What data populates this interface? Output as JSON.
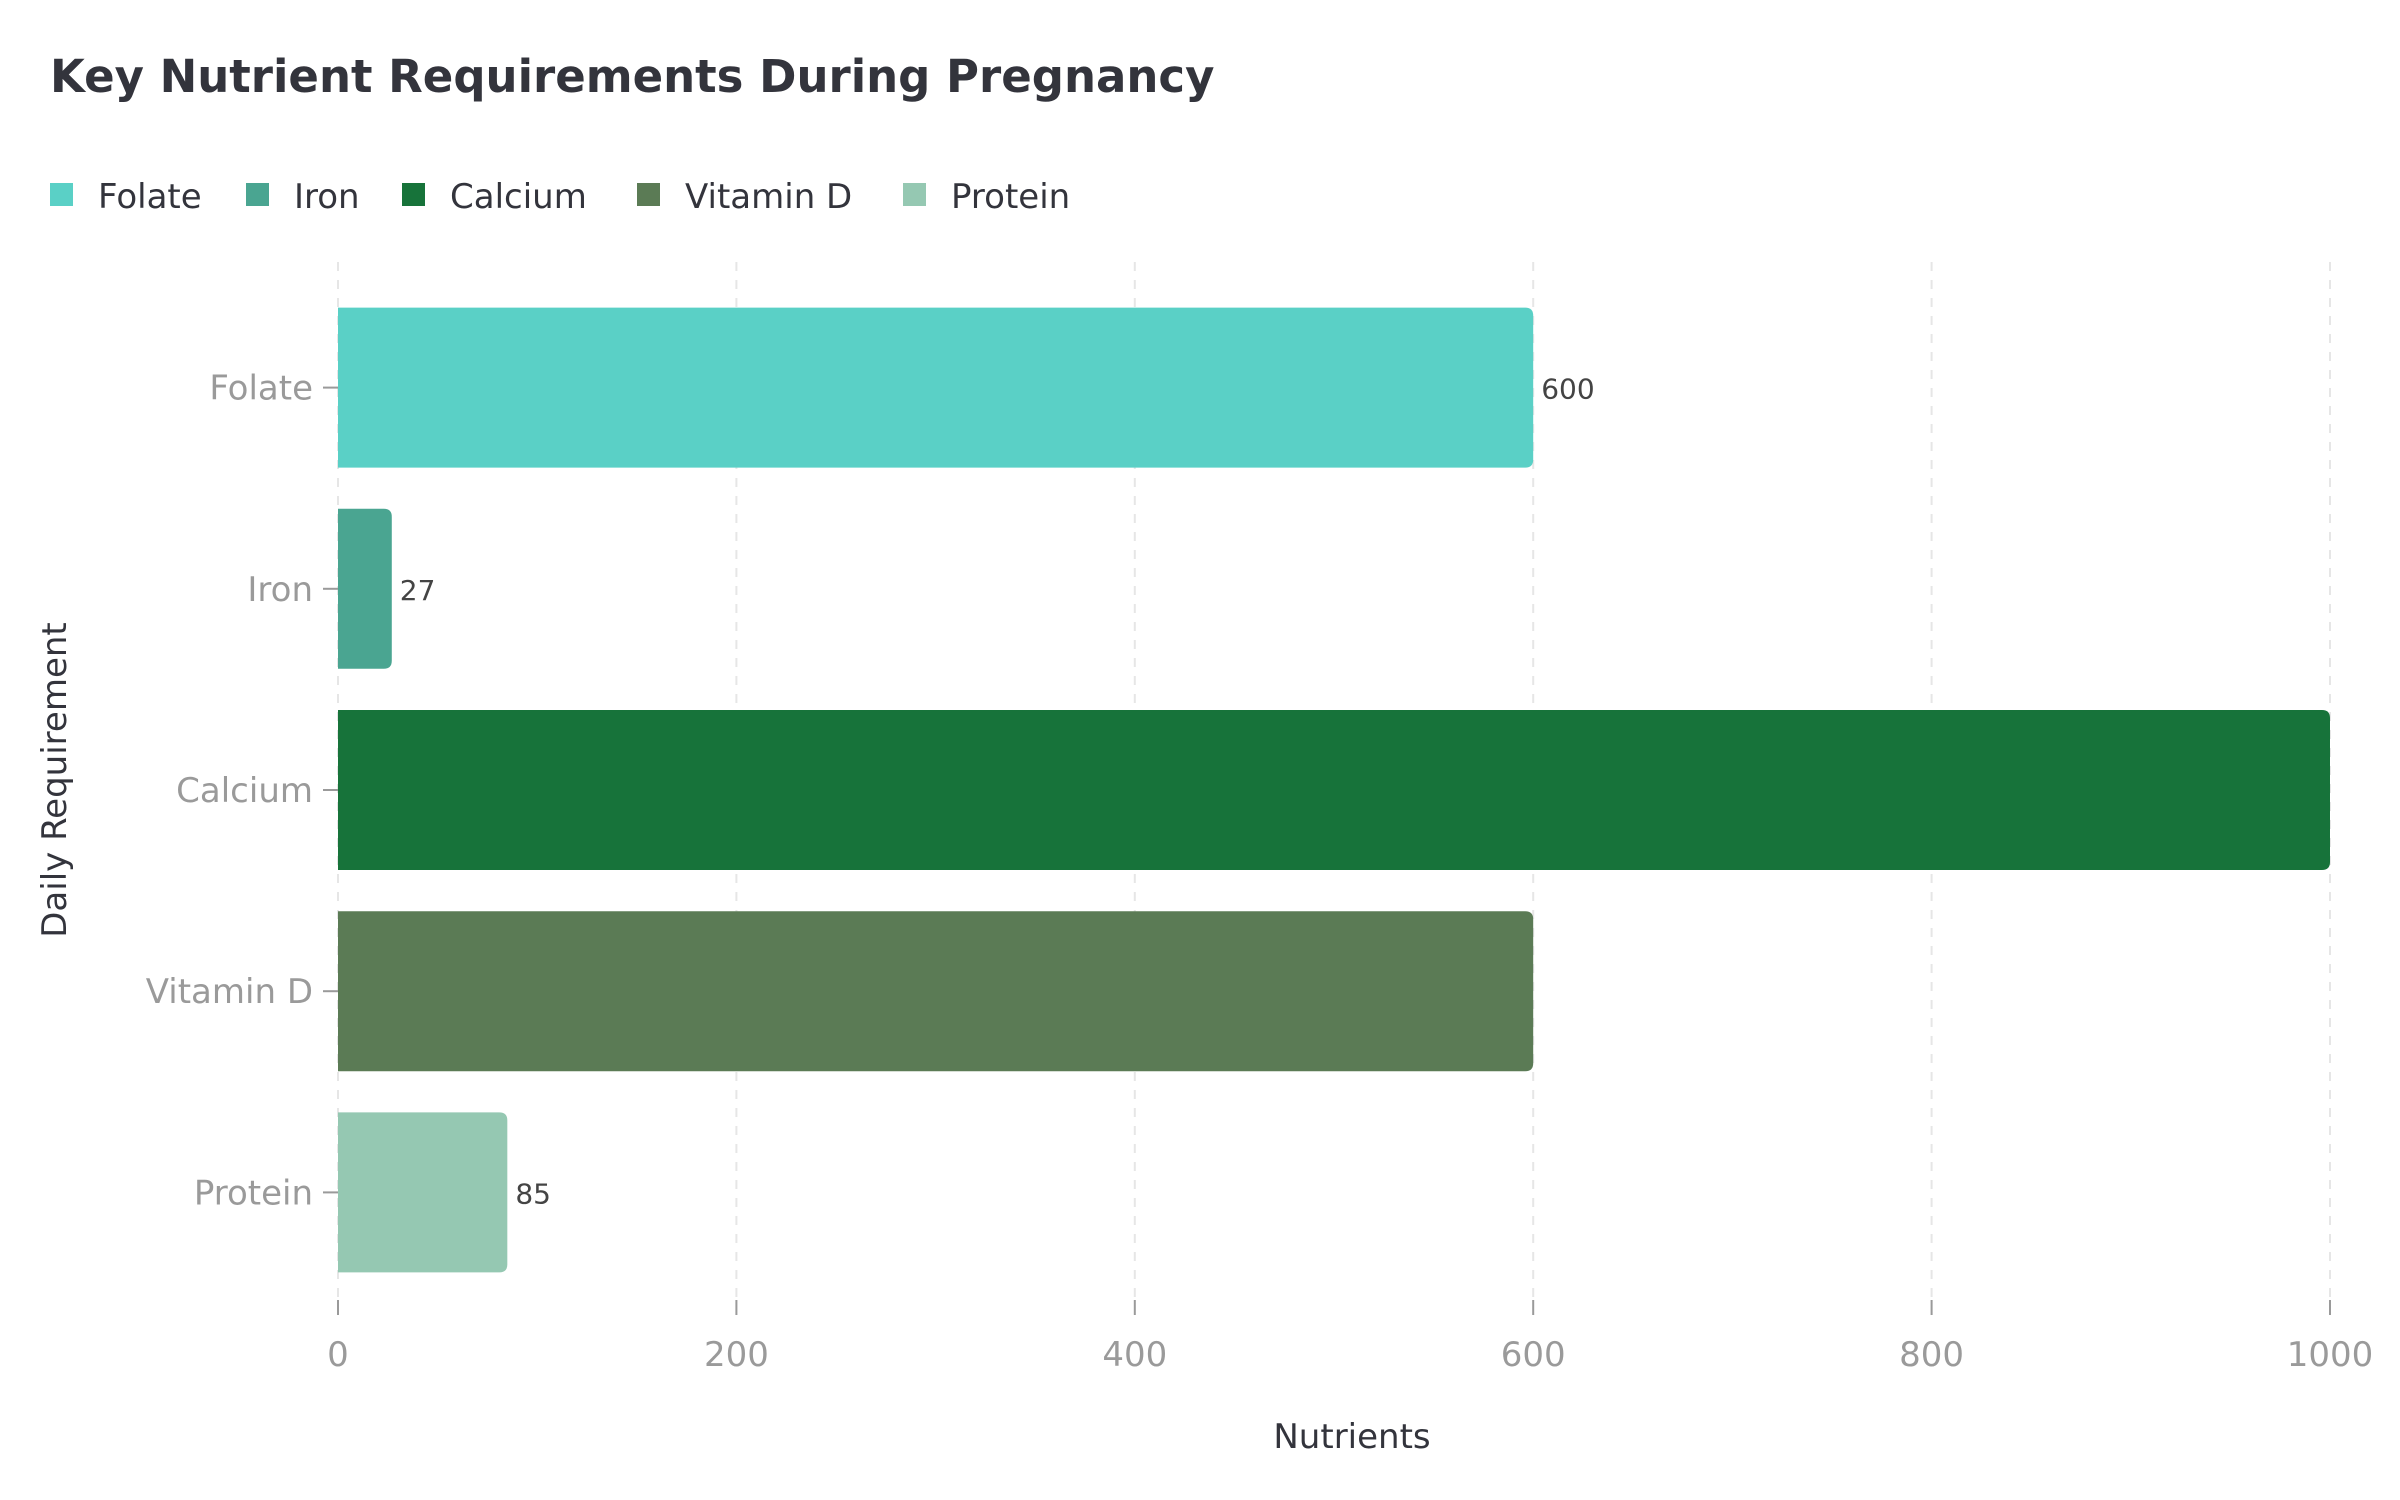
{
  "chart_data": {
    "type": "bar",
    "orientation": "horizontal",
    "title": "Key Nutrient Requirements During Pregnancy",
    "xlabel": "Nutrients",
    "ylabel": "Daily Requirement",
    "categories": [
      "Folate",
      "Iron",
      "Calcium",
      "Vitamin D",
      "Protein"
    ],
    "values": [
      600,
      27,
      1000,
      600,
      85
    ],
    "value_labels": [
      "600",
      "27",
      "",
      "",
      "85"
    ],
    "colors": [
      "#5ad0c6",
      "#4aa591",
      "#17733a",
      "#5b7b55",
      "#95c8b2"
    ],
    "xlim": [
      0,
      1000
    ],
    "xticks": [
      0,
      200,
      400,
      600,
      800,
      1000
    ],
    "xtick_labels": [
      "0",
      "200",
      "400",
      "600",
      "800",
      "1000"
    ],
    "grid": "vertical dashed",
    "legend": {
      "position": "top-left",
      "items": [
        "Folate",
        "Iron",
        "Calcium",
        "Vitamin D",
        "Protein"
      ]
    }
  }
}
